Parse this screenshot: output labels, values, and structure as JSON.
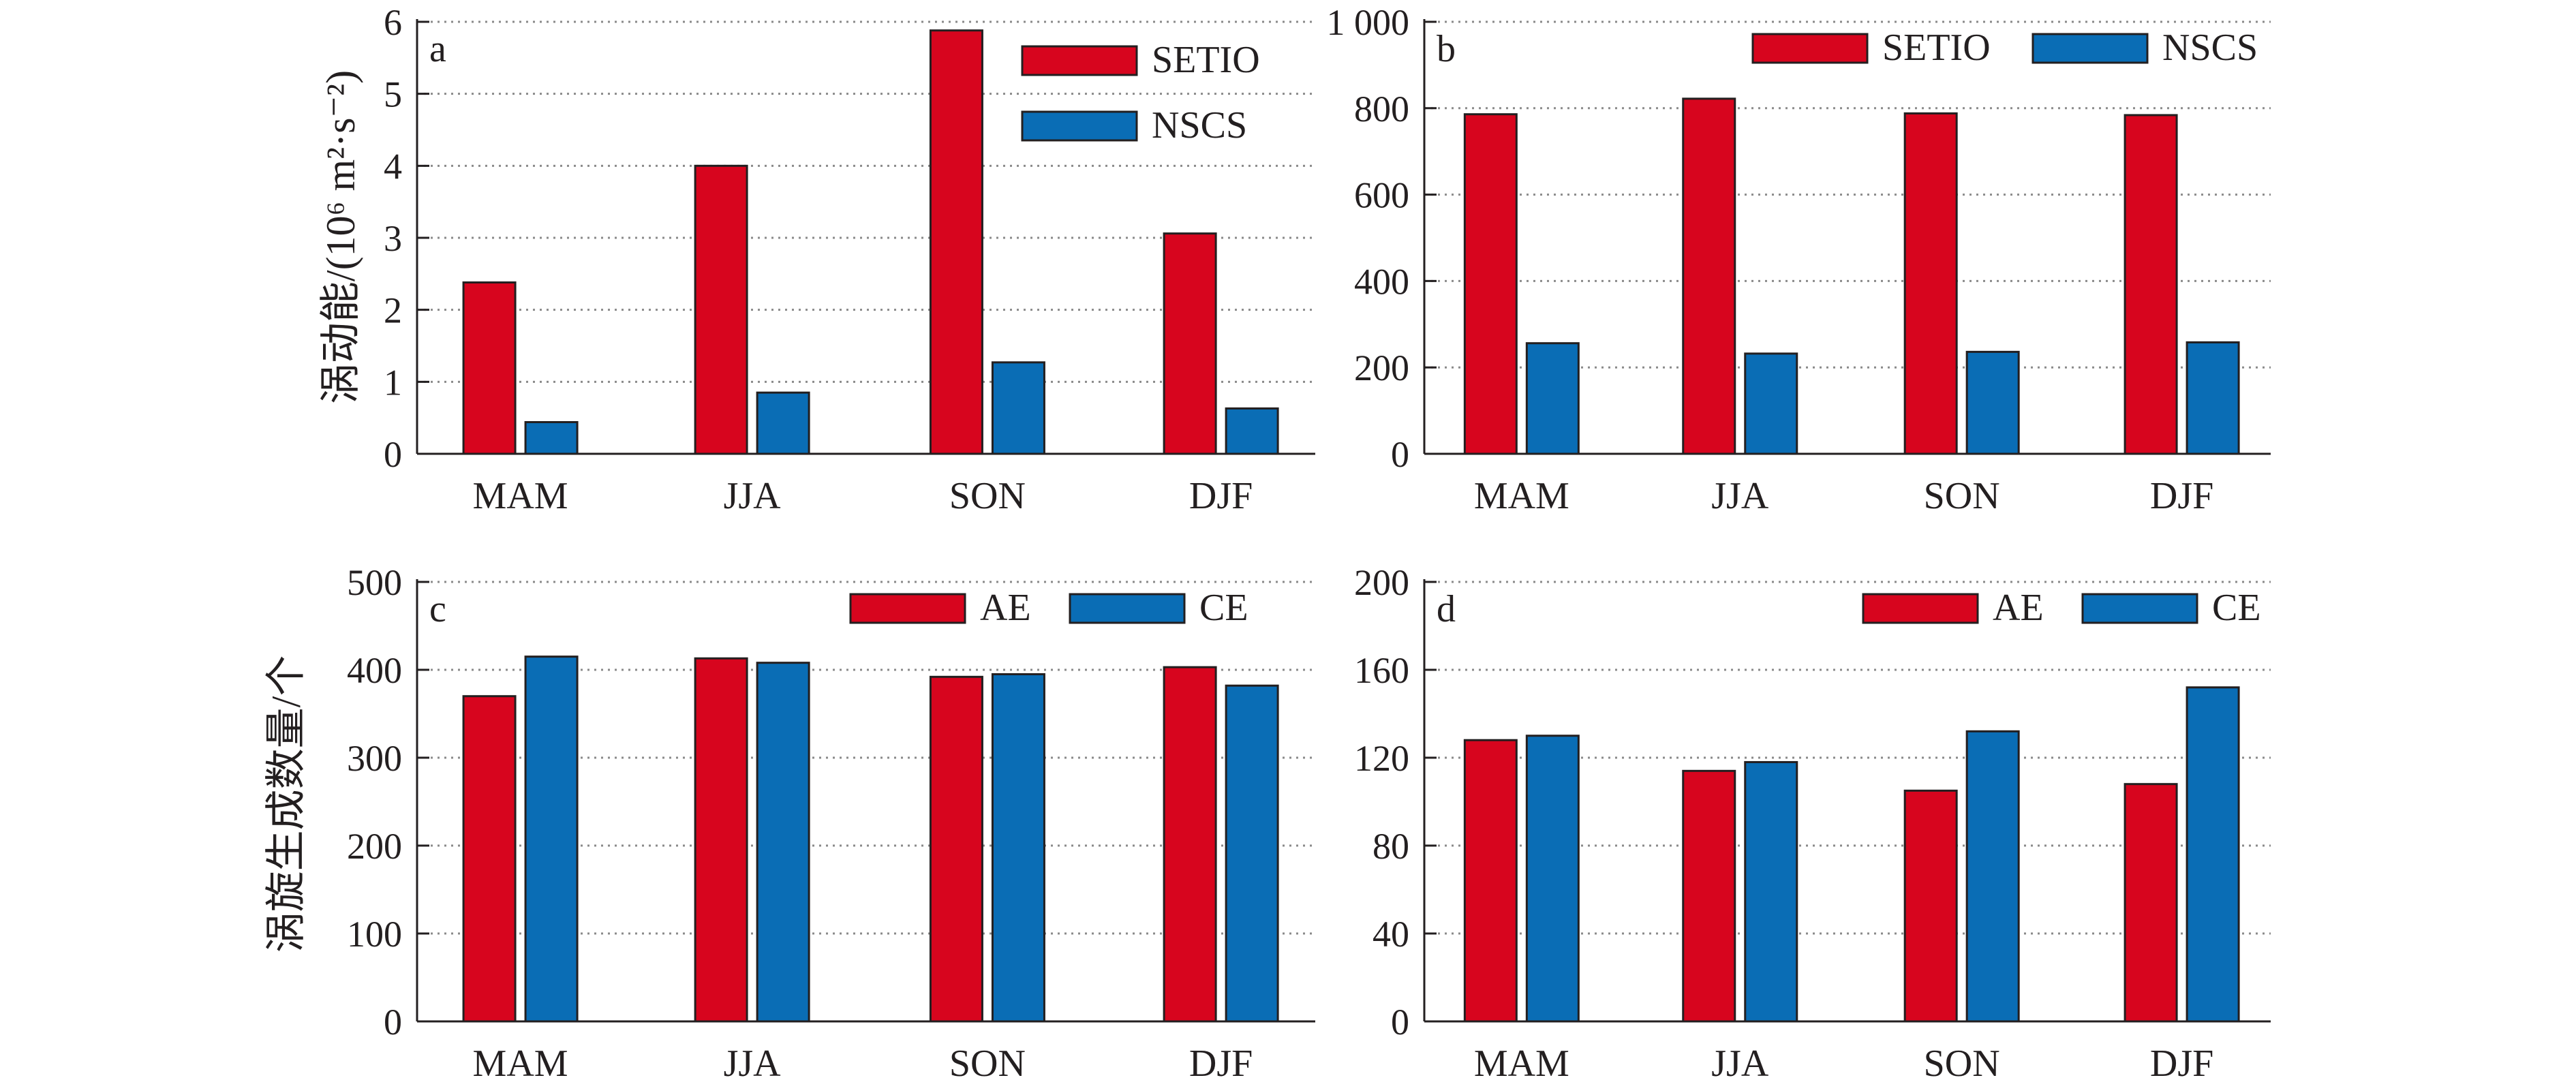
{
  "colors": {
    "red": "#d7051e",
    "blue": "#0a6db5"
  },
  "ylabel_top": "涡动能/(10⁶ m²·s⁻²)",
  "ylabel_bottom": "涡旋生成数量/个",
  "chart_data": [
    {
      "panel": "a",
      "type": "bar",
      "categories": [
        "MAM",
        "JJA",
        "SON",
        "DJF"
      ],
      "series": [
        {
          "name": "SETIO",
          "color": "#d7051e",
          "values": [
            2.38,
            4.0,
            5.88,
            3.06
          ]
        },
        {
          "name": "NSCS",
          "color": "#0a6db5",
          "values": [
            0.44,
            0.85,
            1.27,
            0.63
          ]
        }
      ],
      "ylim": [
        0,
        6
      ],
      "yticks": [
        0,
        1,
        2,
        3,
        4,
        5,
        6
      ],
      "ytick_labels": [
        "0",
        "1",
        "2",
        "3",
        "4",
        "5",
        "6"
      ],
      "grid": true,
      "legend": "top-right-stacked"
    },
    {
      "panel": "b",
      "type": "bar",
      "categories": [
        "MAM",
        "JJA",
        "SON",
        "DJF"
      ],
      "series": [
        {
          "name": "SETIO",
          "color": "#d7051e",
          "values": [
            786,
            822,
            788,
            784
          ]
        },
        {
          "name": "NSCS",
          "color": "#0a6db5",
          "values": [
            256,
            232,
            236,
            258
          ]
        }
      ],
      "ylim": [
        0,
        1000
      ],
      "yticks": [
        0,
        200,
        400,
        600,
        800,
        1000
      ],
      "ytick_labels": [
        "0",
        "200",
        "400",
        "600",
        "800",
        "1 000"
      ],
      "grid": true,
      "legend": "top-right-row"
    },
    {
      "panel": "c",
      "type": "bar",
      "categories": [
        "MAM",
        "JJA",
        "SON",
        "DJF"
      ],
      "series": [
        {
          "name": "AE",
          "color": "#d7051e",
          "values": [
            370,
            413,
            392,
            403
          ]
        },
        {
          "name": "CE",
          "color": "#0a6db5",
          "values": [
            415,
            408,
            395,
            382
          ]
        }
      ],
      "ylim": [
        0,
        500
      ],
      "yticks": [
        0,
        100,
        200,
        300,
        400,
        500
      ],
      "ytick_labels": [
        "0",
        "100",
        "200",
        "300",
        "400",
        "500"
      ],
      "grid": true,
      "legend": "top-right-row"
    },
    {
      "panel": "d",
      "type": "bar",
      "categories": [
        "MAM",
        "JJA",
        "SON",
        "DJF"
      ],
      "series": [
        {
          "name": "AE",
          "color": "#d7051e",
          "values": [
            128,
            114,
            105,
            108
          ]
        },
        {
          "name": "CE",
          "color": "#0a6db5",
          "values": [
            130,
            118,
            132,
            152
          ]
        }
      ],
      "ylim": [
        0,
        200
      ],
      "yticks": [
        0,
        40,
        80,
        120,
        160,
        200
      ],
      "ytick_labels": [
        "0",
        "40",
        "80",
        "120",
        "160",
        "200"
      ],
      "grid": true,
      "legend": "top-right-row"
    }
  ]
}
